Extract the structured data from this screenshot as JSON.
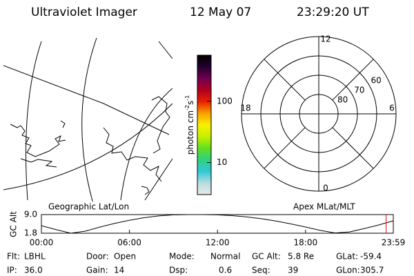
{
  "header": {
    "title": "Ultraviolet Imager",
    "date": "12 May 07",
    "time": "23:29:20 UT"
  },
  "colorbar": {
    "label": [
      "photon cm",
      "-2",
      "s",
      "-1"
    ],
    "colors": [
      "#e8e8e8",
      "#b8dce0",
      "#30c8d8",
      "#30d080",
      "#60e020",
      "#c8f000",
      "#f8f000",
      "#f8a000",
      "#e82000",
      "#b00020",
      "#700050",
      "#200030",
      "#000000"
    ],
    "clim": [
      3,
      565
    ],
    "log": true,
    "ticks": [
      10,
      100
    ]
  },
  "map_label": "Geographic Lat/Lon",
  "polar": {
    "label": "Apex MLat/MLT",
    "rlim": [
      90,
      50
    ],
    "lat_ticks": [
      60,
      70,
      80
    ],
    "mlt_ticks": [
      0,
      6,
      12,
      18
    ]
  },
  "chart_data": {
    "type": "line",
    "ylabel": "GC Alt",
    "x": [
      0,
      1,
      2,
      3,
      4,
      5,
      6,
      7,
      8,
      9,
      10,
      11,
      12,
      13,
      14,
      15,
      16,
      17,
      18,
      19,
      20,
      21,
      22,
      23,
      23.98
    ],
    "values": [
      4.7,
      3.2,
      1.8,
      2.6,
      4.2,
      5.6,
      6.8,
      7.8,
      8.5,
      8.9,
      9.0,
      9.0,
      8.9,
      8.6,
      8.1,
      7.4,
      6.5,
      5.4,
      4.2,
      2.9,
      1.9,
      2.3,
      3.6,
      5.0,
      6.6
    ],
    "color": "#000000",
    "marker_x": 23.49,
    "marker_color": "#e00000",
    "xlim": [
      0,
      23.98
    ],
    "ylim": [
      1.8,
      9.0
    ],
    "xticks": [
      {
        "value": 0,
        "label": "00:00"
      },
      {
        "value": 6,
        "label": "06:00"
      },
      {
        "value": 12,
        "label": "12:00"
      },
      {
        "value": 18,
        "label": "18:00"
      },
      {
        "value": 23.98,
        "label": "23:59"
      }
    ],
    "yticks": [
      {
        "value": 9.0,
        "label": "9.0"
      },
      {
        "value": 1.8,
        "label": "1.8"
      }
    ]
  },
  "info": [
    [
      {
        "label": "Flt:",
        "value": "LBHL"
      },
      {
        "label": "Door:",
        "value": "Open"
      },
      {
        "label": "Mode:",
        "value": "Normal"
      },
      {
        "label": "GC Alt:",
        "value": "5.8 Re"
      },
      {
        "label": "GLat:",
        "value": "-59.4"
      }
    ],
    [
      {
        "label": "IP:",
        "value": "36.0"
      },
      {
        "label": "Gain:",
        "value": "14"
      },
      {
        "label": "Dsp:",
        "value": "0.6"
      },
      {
        "label": "Seq:",
        "value": "39"
      },
      {
        "label": "GLon:",
        "value": "305.7"
      }
    ]
  ]
}
